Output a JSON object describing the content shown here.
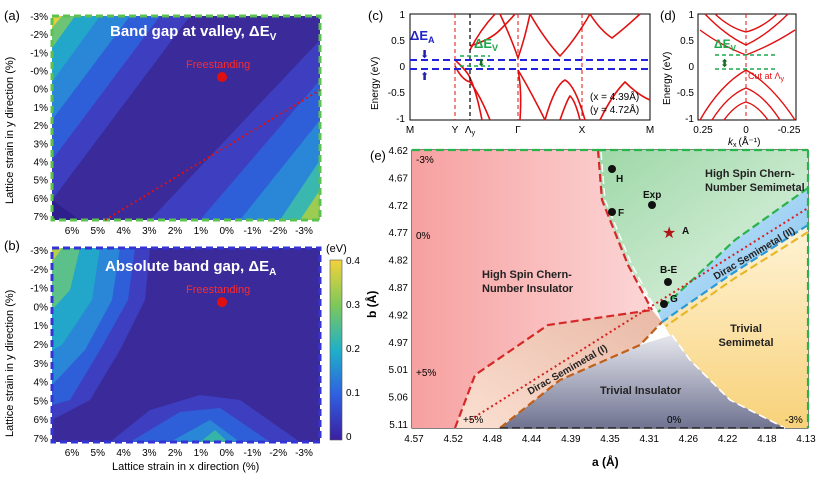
{
  "panel_labels": {
    "a": "(a)",
    "b": "(b)",
    "c": "(c)",
    "d": "(d)",
    "e": "(e)"
  },
  "panel_a": {
    "title": "Band gap at valley, ΔE",
    "title_sub": "V",
    "ylabel": "Lattice strain in y direction (%)",
    "y_ticks": [
      "-3%",
      "-2%",
      "-1%",
      "-0%",
      "0%",
      "1%",
      "2%",
      "3%",
      "4%",
      "5%",
      "6%",
      "7%"
    ],
    "x_ticks": [
      "6%",
      "5%",
      "4%",
      "3%",
      "2%",
      "1%",
      "0%",
      "-1%",
      "-2%",
      "-3%"
    ],
    "marker_label": "Freestanding"
  },
  "panel_b": {
    "title": "Absolute band gap, ΔE",
    "title_sub": "A",
    "ylabel": "Lattice strain in y direction (%)",
    "xlabel": "Lattice strain in x direction (%)",
    "y_ticks": [
      "-3%",
      "-2%",
      "-1%",
      "0%",
      "1%",
      "2%",
      "3%",
      "4%",
      "5%",
      "6%",
      "7%"
    ],
    "x_ticks": [
      "6%",
      "5%",
      "4%",
      "3%",
      "2%",
      "1%",
      "0%",
      "-1%",
      "-2%",
      "-3%"
    ],
    "marker_label": "Freestanding"
  },
  "colorbar": {
    "unit": "(eV)",
    "ticks": [
      "0.4",
      "0.3",
      "0.2",
      "0.1",
      "0"
    ],
    "min": 0,
    "max": 0.4
  },
  "panel_c": {
    "ylabel": "Energy (eV)",
    "y_ticks": [
      "1",
      "0.5",
      "0",
      "-0.5",
      "-1"
    ],
    "ylim": [
      -1,
      1
    ],
    "k_labels": [
      "M",
      "Y",
      "Λ",
      "Γ",
      "X",
      "M"
    ],
    "lambda_sub": "y",
    "dEA": "ΔE",
    "dEA_sub": "A",
    "dEV": "ΔE",
    "dEV_sub": "V",
    "params": [
      "(x = 4.39Å)",
      "(y = 4.72Å)"
    ]
  },
  "panel_d": {
    "ylabel": "Energy (eV)",
    "y_ticks": [
      "1",
      "0.5",
      "0",
      "-0.5",
      "-1"
    ],
    "x_ticks": [
      "0.25",
      "0",
      "-0.25"
    ],
    "xlabel": "k",
    "xlabel_sub": "x",
    "xlabel_unit": "(Å⁻¹)",
    "dEV": "ΔE",
    "dEV_sub": "V",
    "cut_label": "Cut at Λ",
    "cut_sub": "y"
  },
  "panel_e": {
    "ylabel": "b (Å)",
    "xlabel": "a (Å)",
    "y_ticks": [
      "4.62",
      "4.67",
      "4.72",
      "4.77",
      "4.82",
      "4.87",
      "4.92",
      "4.97",
      "5.01",
      "5.06",
      "5.11"
    ],
    "x_ticks": [
      "4.57",
      "4.52",
      "4.48",
      "4.44",
      "4.39",
      "4.35",
      "4.31",
      "4.26",
      "4.22",
      "4.18",
      "4.13"
    ],
    "regions": {
      "hsci": [
        "High Spin Chern-",
        "Number Insulator"
      ],
      "hscs": [
        "High Spin Chern-",
        "Number Semimetal"
      ],
      "dirac1": "Dirac Semimetal (I)",
      "dirac2": "Dirac Semimetal (II)",
      "trivial_semi": [
        "Trivial",
        "Semimetal"
      ],
      "trivial_ins": "Trivial Insulator"
    },
    "strain_marks": [
      "-3%",
      "0%",
      "+5%",
      "+5%",
      "0%",
      "-3%"
    ],
    "points": [
      "H",
      "Exp",
      "F",
      "A",
      "B-E",
      "G"
    ]
  },
  "colors": {
    "contour_high": "#e8c93a",
    "contour_low": "#3b2a9c",
    "band_line": "#e01010",
    "hsci": "#f8a8a8",
    "hscs": "#bfe5c4",
    "dirac2": "#a9d6f2",
    "trivial_semi": "#fbe3a6",
    "trivial_ins": "#b9bcc9",
    "border_a": "#5cc24f",
    "border_b": "#3434d6"
  }
}
